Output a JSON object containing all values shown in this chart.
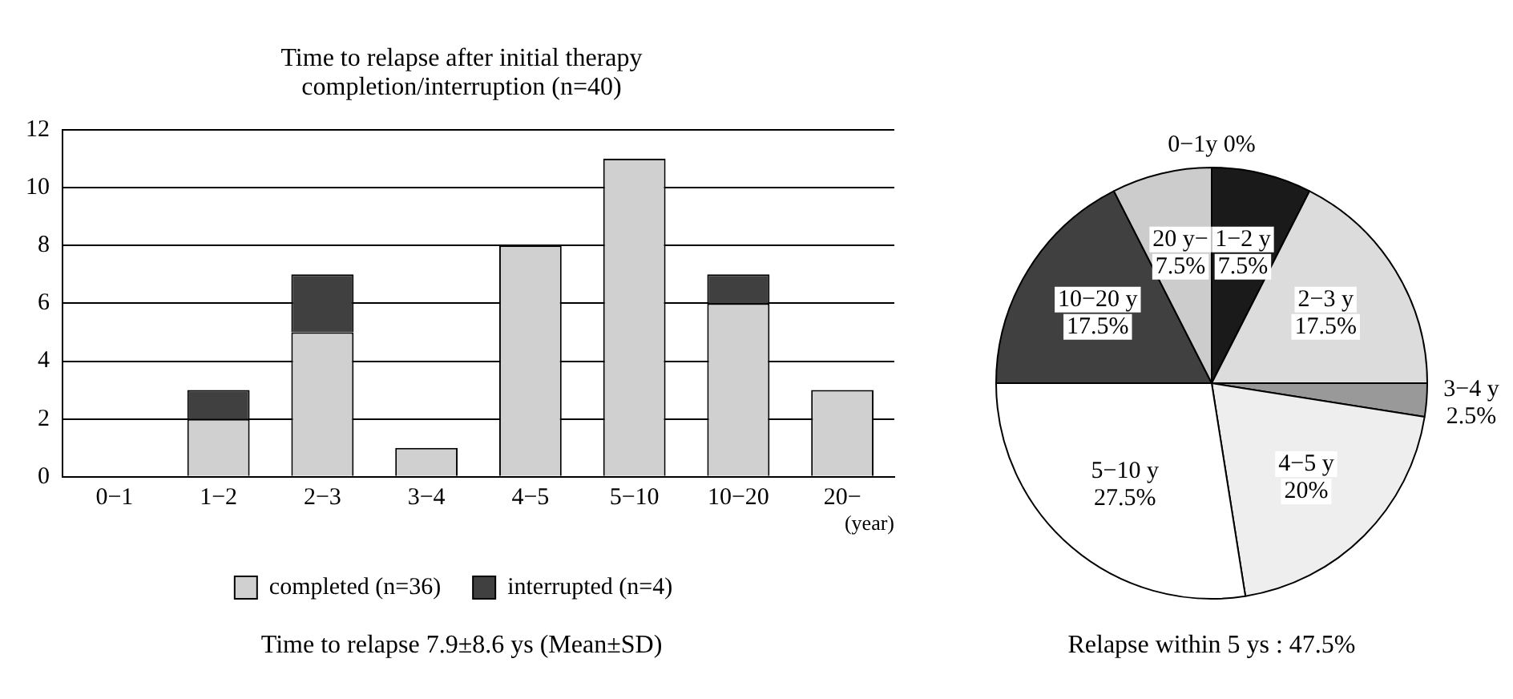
{
  "chart_data": [
    {
      "type": "bar",
      "title": "Time to relapse after initial therapy completion/interruption (n=40)",
      "xlabel": "(year)",
      "categories": [
        "0−1",
        "1−2",
        "2−3",
        "3−4",
        "4−5",
        "5−10",
        "10−20",
        "20−"
      ],
      "stacked": true,
      "ylim": [
        0,
        12
      ],
      "yticks": [
        0,
        2,
        4,
        6,
        8,
        10,
        12
      ],
      "grid": "y",
      "legend": "bottom",
      "series": [
        {
          "name": "completed (n=36)",
          "color": "#d0d0d0",
          "values": [
            0,
            2,
            5,
            1,
            8,
            11,
            6,
            3
          ]
        },
        {
          "name": "interrupted (n=4)",
          "color": "#404040",
          "values": [
            0,
            1,
            2,
            0,
            0,
            0,
            1,
            0
          ]
        }
      ],
      "annotations": [
        "Time to relapse 7.9±8.6 ys (Mean±SD)"
      ]
    },
    {
      "type": "pie",
      "categories": [
        "0−1y",
        "1−2 y",
        "2−3 y",
        "3−4 y",
        "4−5 y",
        "5−10 y",
        "10−20 y",
        "20 y−"
      ],
      "values": [
        0,
        7.5,
        17.5,
        2.5,
        20,
        27.5,
        17.5,
        7.5
      ],
      "value_labels": [
        "0%",
        "7.5%",
        "17.5%",
        "2.5%",
        "20%",
        "27.5%",
        "17.5%",
        "7.5%"
      ],
      "colors": [
        "#ffffff",
        "#1a1a1a",
        "#dcdcdc",
        "#999999",
        "#eeeeee",
        "#ffffff",
        "#404040",
        "#cccccc"
      ],
      "annotations": [
        "Relapse within 5 ys : 47.5%"
      ]
    }
  ]
}
